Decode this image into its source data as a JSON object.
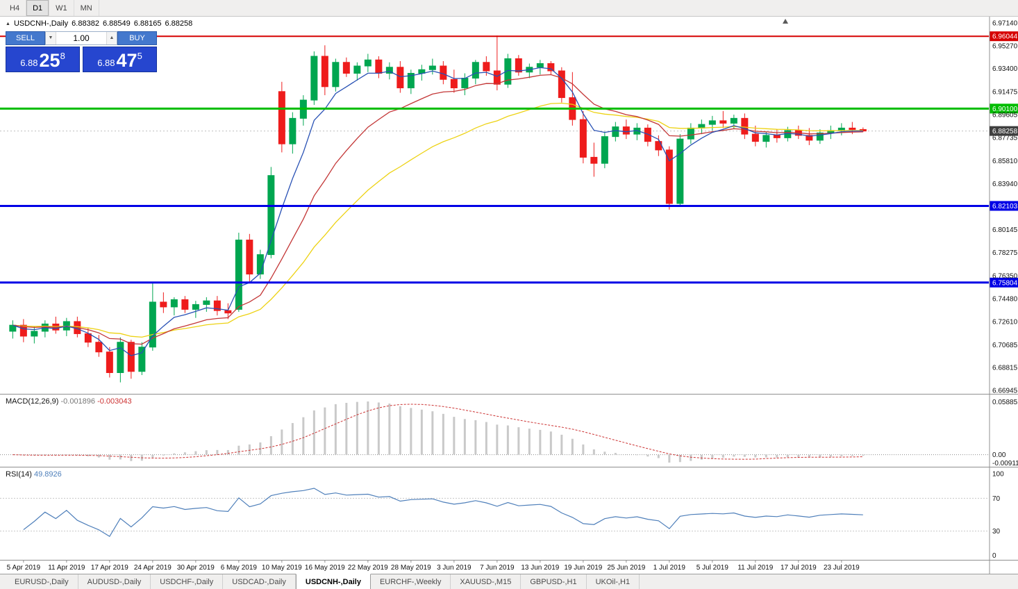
{
  "toolbar": {
    "timeframes": [
      "H4",
      "D1",
      "W1",
      "MN"
    ],
    "active": "D1"
  },
  "chart_header": {
    "collapse_icon": "▲",
    "title": "USDCNH-,Daily",
    "open": "6.88382",
    "high": "6.88549",
    "low": "6.88165",
    "close": "6.88258"
  },
  "trade_panel": {
    "sell_label": "SELL",
    "buy_label": "BUY",
    "volume": "1.00",
    "dropdown_icon": "▼",
    "up_icon": "▲",
    "bid": {
      "big": "6.88",
      "main": "25",
      "sup": "8"
    },
    "ask": {
      "big": "6.88",
      "main": "47",
      "sup": "5"
    }
  },
  "price_scale": {
    "labels": [
      "6.97140",
      "6.95270",
      "6.93400",
      "6.91475",
      "6.89605",
      "6.87735",
      "6.85810",
      "6.83940",
      "6.80145",
      "6.78275",
      "6.76350",
      "6.74480",
      "6.72610",
      "6.70685",
      "6.68815",
      "6.66945"
    ]
  },
  "colors": {
    "bull": "#00a650",
    "bear": "#ee1c1c",
    "hline_red": "#d60000",
    "hline_green": "#00bd00",
    "hline_blue": "#0000e6",
    "current_price_box": "#3f3f3f",
    "macd_hist": "#c9c9c9",
    "macd_signal": "#cc3333",
    "rsi_line": "#4e7fba",
    "trade_button": "#4478cd",
    "price_box": "#2646cf"
  },
  "tab_bar": {
    "tabs": [
      "EURUSD-,Daily",
      "AUDUSD-,Daily",
      "USDCHF-,Daily",
      "USDCAD-,Daily",
      "USDCNH-,Daily",
      "EURCHF-,Weekly",
      "XAUUSD-,M15",
      "GBPUSD-,H1",
      "UKOil-,H1"
    ],
    "active": "USDCNH-,Daily"
  },
  "chart_data": {
    "type": "candlestick",
    "symbol": "USDCNH-",
    "timeframe": "Daily",
    "price_axis": {
      "min": 6.66945,
      "max": 6.9714
    },
    "current_price": {
      "value": 6.88258,
      "label": "6.88258"
    },
    "hlines": [
      {
        "price": 6.96044,
        "label": "6.96044",
        "color": "#d60000",
        "width": 2
      },
      {
        "price": 6.901,
        "label": "6.90100",
        "color": "#00bd00",
        "width": 3
      },
      {
        "price": 6.82103,
        "label": "6.82103",
        "color": "#0000e6",
        "width": 3
      },
      {
        "price": 6.75804,
        "label": "6.75804",
        "color": "#0000e6",
        "width": 3
      }
    ],
    "moving_averages": [
      {
        "period": 5,
        "color": "#2750b4"
      },
      {
        "period": 13,
        "color": "#c33636"
      },
      {
        "period": 26,
        "color": "#edd213"
      }
    ],
    "macd": {
      "name": "MACD(12,26,9)",
      "fast": 12,
      "slow": 26,
      "signal": 9,
      "value1": "-0.001896",
      "value2": "-0.003043",
      "scale": [
        "0.058851",
        "0.00",
        "-0.009116"
      ]
    },
    "rsi": {
      "name": "RSI(14)",
      "period": 14,
      "value": "49.8926",
      "scale": [
        "100",
        "70",
        "30",
        "0"
      ],
      "levels": [
        70,
        30
      ]
    },
    "axis_dates": [
      "5 Apr 2019",
      "11 Apr 2019",
      "17 Apr 2019",
      "24 Apr 2019",
      "30 Apr 2019",
      "6 May 2019",
      "10 May 2019",
      "16 May 2019",
      "22 May 2019",
      "28 May 2019",
      "3 Jun 2019",
      "7 Jun 2019",
      "13 Jun 2019",
      "19 Jun 2019",
      "25 Jun 2019",
      "1 Jul 2019",
      "5 Jul 2019",
      "11 Jul 2019",
      "17 Jul 2019",
      "23 Jul 2019"
    ],
    "candles": [
      [
        "4 Apr 2019",
        6.718,
        6.727,
        6.712,
        6.723
      ],
      [
        "5 Apr 2019",
        6.723,
        6.728,
        6.709,
        6.714
      ],
      [
        "8 Apr 2019",
        6.714,
        6.722,
        6.708,
        6.718
      ],
      [
        "9 Apr 2019",
        6.718,
        6.727,
        6.713,
        6.724
      ],
      [
        "10 Apr 2019",
        6.724,
        6.73,
        6.716,
        6.719
      ],
      [
        "11 Apr 2019",
        6.719,
        6.729,
        6.714,
        6.726
      ],
      [
        "12 Apr 2019",
        6.726,
        6.73,
        6.713,
        6.716
      ],
      [
        "15 Apr 2019",
        6.716,
        6.721,
        6.705,
        6.709
      ],
      [
        "16 Apr 2019",
        6.709,
        6.715,
        6.697,
        6.701
      ],
      [
        "17 Apr 2019",
        6.701,
        6.705,
        6.68,
        6.684
      ],
      [
        "18 Apr 2019",
        6.684,
        6.713,
        6.676,
        6.709
      ],
      [
        "22 Apr 2019",
        6.709,
        6.711,
        6.679,
        6.685
      ],
      [
        "23 Apr 2019",
        6.685,
        6.709,
        6.682,
        6.705
      ],
      [
        "24 Apr 2019",
        6.705,
        6.758,
        6.702,
        6.742
      ],
      [
        "25 Apr 2019",
        6.742,
        6.75,
        6.733,
        6.738
      ],
      [
        "26 Apr 2019",
        6.738,
        6.746,
        6.731,
        6.744
      ],
      [
        "29 Apr 2019",
        6.744,
        6.747,
        6.733,
        6.736
      ],
      [
        "30 Apr 2019",
        6.736,
        6.743,
        6.729,
        6.74
      ],
      [
        "1 May 2019",
        6.74,
        6.746,
        6.734,
        6.743
      ],
      [
        "2 May 2019",
        6.743,
        6.747,
        6.731,
        6.735
      ],
      [
        "3 May 2019",
        6.735,
        6.741,
        6.728,
        6.733
      ],
      [
        "6 May 2019",
        6.736,
        6.799,
        6.734,
        6.793
      ],
      [
        "7 May 2019",
        6.793,
        6.798,
        6.758,
        6.765
      ],
      [
        "8 May 2019",
        6.765,
        6.785,
        6.761,
        6.781
      ],
      [
        "9 May 2019",
        6.781,
        6.853,
        6.778,
        6.846
      ],
      [
        "10 May 2019",
        6.915,
        6.923,
        6.865,
        6.872
      ],
      [
        "13 May 2019",
        6.872,
        6.898,
        6.864,
        6.893
      ],
      [
        "14 May 2019",
        6.893,
        6.912,
        6.887,
        6.908
      ],
      [
        "15 May 2019",
        6.908,
        6.948,
        6.904,
        6.944
      ],
      [
        "16 May 2019",
        6.944,
        6.953,
        6.912,
        6.919
      ],
      [
        "17 May 2019",
        6.919,
        6.942,
        6.915,
        6.939
      ],
      [
        "20 May 2019",
        6.939,
        6.943,
        6.927,
        6.93
      ],
      [
        "21 May 2019",
        6.93,
        6.939,
        6.924,
        6.936
      ],
      [
        "22 May 2019",
        6.936,
        6.946,
        6.931,
        6.941
      ],
      [
        "23 May 2019",
        6.941,
        6.944,
        6.926,
        6.93
      ],
      [
        "24 May 2019",
        6.93,
        6.939,
        6.925,
        6.935
      ],
      [
        "27 May 2019",
        6.935,
        6.94,
        6.914,
        6.918
      ],
      [
        "28 May 2019",
        6.918,
        6.933,
        6.913,
        6.93
      ],
      [
        "29 May 2019",
        6.93,
        6.937,
        6.924,
        6.933
      ],
      [
        "30 May 2019",
        6.933,
        6.942,
        6.929,
        6.936
      ],
      [
        "31 May 2019",
        6.936,
        6.94,
        6.921,
        6.925
      ],
      [
        "3 Jun 2019",
        6.925,
        6.933,
        6.914,
        6.918
      ],
      [
        "4 Jun 2019",
        6.918,
        6.93,
        6.912,
        6.926
      ],
      [
        "5 Jun 2019",
        6.926,
        6.941,
        6.921,
        6.939
      ],
      [
        "6 Jun 2019",
        6.939,
        6.944,
        6.928,
        6.932
      ],
      [
        "7 Jun 2019",
        6.932,
        6.961,
        6.916,
        6.921
      ],
      [
        "10 Jun 2019",
        6.921,
        6.946,
        6.918,
        6.942
      ],
      [
        "11 Jun 2019",
        6.942,
        6.945,
        6.928,
        6.931
      ],
      [
        "12 Jun 2019",
        6.931,
        6.938,
        6.926,
        6.935
      ],
      [
        "13 Jun 2019",
        6.935,
        6.941,
        6.929,
        6.938
      ],
      [
        "14 Jun 2019",
        6.938,
        6.94,
        6.929,
        6.932
      ],
      [
        "17 Jun 2019",
        6.932,
        6.935,
        6.906,
        6.91
      ],
      [
        "18 Jun 2019",
        6.91,
        6.931,
        6.887,
        6.892
      ],
      [
        "19 Jun 2019",
        6.892,
        6.899,
        6.856,
        6.861
      ],
      [
        "20 Jun 2019",
        6.861,
        6.873,
        6.845,
        6.856
      ],
      [
        "21 Jun 2019",
        6.856,
        6.882,
        6.852,
        6.878
      ],
      [
        "24 Jun 2019",
        6.878,
        6.89,
        6.874,
        6.886
      ],
      [
        "25 Jun 2019",
        6.886,
        6.892,
        6.876,
        6.88
      ],
      [
        "26 Jun 2019",
        6.88,
        6.889,
        6.875,
        6.885
      ],
      [
        "27 Jun 2019",
        6.885,
        6.888,
        6.87,
        6.874
      ],
      [
        "28 Jun 2019",
        6.874,
        6.879,
        6.862,
        6.867
      ],
      [
        "1 Jul 2019",
        6.867,
        6.87,
        6.818,
        6.823
      ],
      [
        "2 Jul 2019",
        6.823,
        6.88,
        6.821,
        6.876
      ],
      [
        "3 Jul 2019",
        6.876,
        6.889,
        6.872,
        6.885
      ],
      [
        "4 Jul 2019",
        6.885,
        6.892,
        6.88,
        6.888
      ],
      [
        "5 Jul 2019",
        6.888,
        6.895,
        6.883,
        6.891
      ],
      [
        "8 Jul 2019",
        6.891,
        6.899,
        6.885,
        6.889
      ],
      [
        "9 Jul 2019",
        6.889,
        6.896,
        6.884,
        6.893
      ],
      [
        "10 Jul 2019",
        6.893,
        6.897,
        6.876,
        6.88
      ],
      [
        "11 Jul 2019",
        6.88,
        6.887,
        6.87,
        6.874
      ],
      [
        "12 Jul 2019",
        6.874,
        6.882,
        6.869,
        6.879
      ],
      [
        "15 Jul 2019",
        6.879,
        6.884,
        6.873,
        6.877
      ],
      [
        "16 Jul 2019",
        6.877,
        6.886,
        6.874,
        6.883
      ],
      [
        "17 Jul 2019",
        6.883,
        6.887,
        6.876,
        6.879
      ],
      [
        "18 Jul 2019",
        6.879,
        6.885,
        6.871,
        6.875
      ],
      [
        "19 Jul 2019",
        6.875,
        6.884,
        6.872,
        6.881
      ],
      [
        "22 Jul 2019",
        6.881,
        6.887,
        6.876,
        6.883
      ],
      [
        "23 Jul 2019",
        6.883,
        6.889,
        6.879,
        6.885
      ],
      [
        "24 Jul 2019",
        6.885,
        6.89,
        6.88,
        6.8838
      ],
      [
        "25 Jul 2019",
        6.88382,
        6.88549,
        6.88165,
        6.88258
      ]
    ]
  }
}
